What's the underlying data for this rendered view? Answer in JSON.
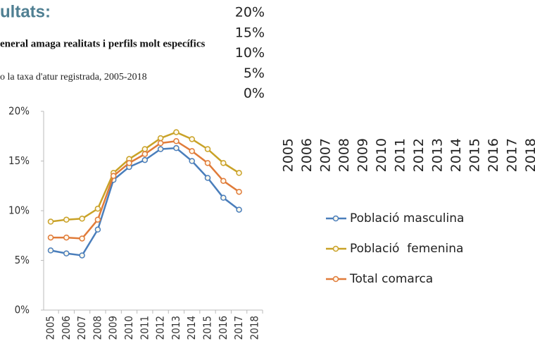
{
  "heading": "ultats:",
  "subheading": "eneral amaga realitats i perfils molt específics",
  "caption": "o la taxa d'atur registrada, 2005-2018",
  "chart_data": {
    "type": "line",
    "categories": [
      "2005",
      "2006",
      "2007",
      "2008",
      "2009",
      "2010",
      "2011",
      "2012",
      "2013",
      "2014",
      "2015",
      "2016",
      "2017",
      "2018"
    ],
    "series": [
      {
        "name": "Població masculina",
        "color": "#4a7ebb",
        "values": [
          6.0,
          5.7,
          5.5,
          8.1,
          13.1,
          14.4,
          15.1,
          16.2,
          16.3,
          15.0,
          13.3,
          11.3,
          10.1,
          null
        ]
      },
      {
        "name": "Població  femenina",
        "color": "#c9a227",
        "values": [
          8.9,
          9.1,
          9.2,
          10.2,
          13.8,
          15.2,
          16.2,
          17.3,
          17.9,
          17.2,
          16.2,
          14.8,
          13.8,
          null
        ]
      },
      {
        "name": "Total comarca",
        "color": "#e07b39",
        "values": [
          7.3,
          7.3,
          7.2,
          9.1,
          13.5,
          14.8,
          15.7,
          16.8,
          17.0,
          16.0,
          14.8,
          13.0,
          11.9,
          null
        ]
      }
    ],
    "ylim": [
      0,
      20
    ],
    "yticks": [
      {
        "value": 0,
        "label": "0%"
      },
      {
        "value": 5,
        "label": "5%"
      },
      {
        "value": 10,
        "label": "10%"
      },
      {
        "value": 15,
        "label": "15%"
      },
      {
        "value": 20,
        "label": "20%"
      }
    ],
    "grid": false,
    "legend": "right"
  }
}
